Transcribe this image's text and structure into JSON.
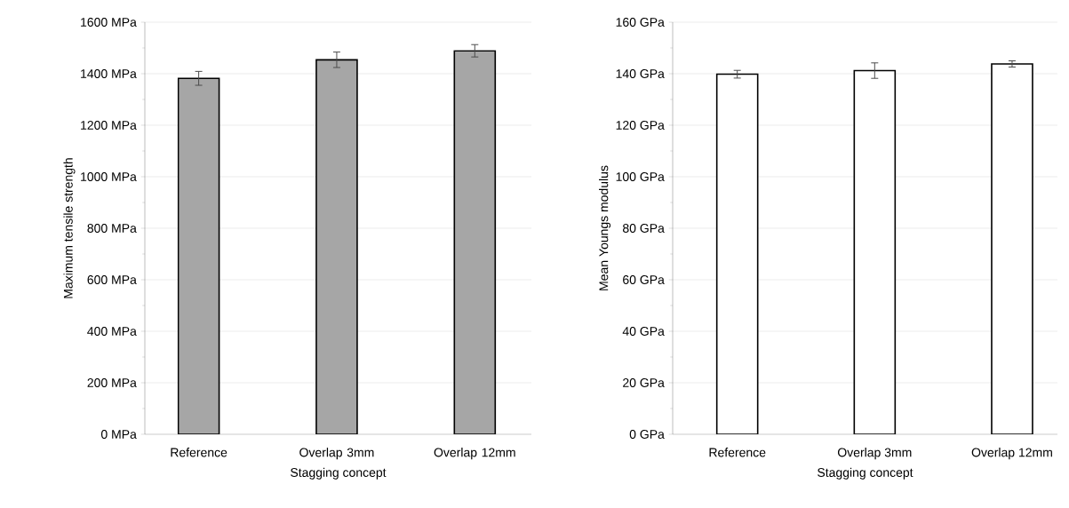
{
  "chart_data": [
    {
      "type": "bar",
      "xlabel": "Stagging concept",
      "ylabel": "Maximum tensile strength",
      "categories": [
        "Reference",
        "Overlap 3mm",
        "Overlap 12mm"
      ],
      "values": [
        1382,
        1454,
        1489
      ],
      "errors": [
        27,
        30,
        24
      ],
      "color": "#a6a6a6",
      "ylim": [
        0,
        1600
      ],
      "yticks": [
        {
          "value": 0,
          "label": "0 MPa"
        },
        {
          "value": 200,
          "label": "200 MPa"
        },
        {
          "value": 400,
          "label": "400 MPa"
        },
        {
          "value": 600,
          "label": "600 MPa"
        },
        {
          "value": 800,
          "label": "800 MPa"
        },
        {
          "value": 1000,
          "label": "1000 MPa"
        },
        {
          "value": 1200,
          "label": "1200 MPa"
        },
        {
          "value": 1400,
          "label": "1400 MPa"
        },
        {
          "value": 1600,
          "label": "1600 MPa"
        }
      ],
      "grid": "y"
    },
    {
      "type": "bar",
      "xlabel": "Stagging concept",
      "ylabel": "Mean Youngs modulus",
      "categories": [
        "Reference",
        "Overlap 3mm",
        "Overlap 12mm"
      ],
      "values": [
        139.8,
        141.2,
        143.8
      ],
      "errors": [
        1.5,
        3,
        1.2
      ],
      "color": "#ffffff",
      "ylim": [
        0,
        160
      ],
      "yticks": [
        {
          "value": 0,
          "label": "0 GPa"
        },
        {
          "value": 20,
          "label": "20 GPa"
        },
        {
          "value": 40,
          "label": "40 GPa"
        },
        {
          "value": 60,
          "label": "60 GPa"
        },
        {
          "value": 80,
          "label": "80 GPa"
        },
        {
          "value": 100,
          "label": "100 GPa"
        },
        {
          "value": 120,
          "label": "120 GPa"
        },
        {
          "value": 140,
          "label": "140 GPa"
        },
        {
          "value": 160,
          "label": "160 GPa"
        }
      ],
      "grid": "y"
    }
  ]
}
